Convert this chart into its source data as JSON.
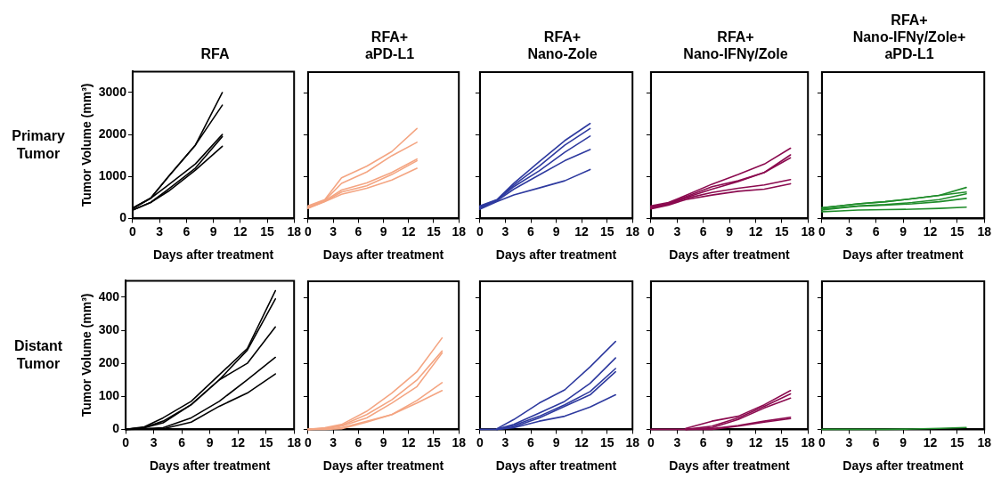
{
  "chart_data": [
    {
      "type": "line",
      "title": "RFA",
      "ylabel": "Tumor Volume (mm³)",
      "xlabel": "Days after treatment",
      "annotations": [
        "Primary Tumor"
      ],
      "x": [
        0,
        2,
        4,
        7,
        10
      ],
      "xlim": [
        0,
        18
      ],
      "xticks": [
        0,
        3,
        6,
        9,
        12,
        15,
        18
      ],
      "ylim": [
        0,
        3500
      ],
      "yticks": [
        0,
        1000,
        2000,
        3000
      ],
      "grid": false,
      "legend": false,
      "marker": "none",
      "series": [
        {
          "color": "#000000",
          "values": [
            250,
            480,
            1000,
            1750,
            3000
          ]
        },
        {
          "color": "#000000",
          "values": [
            250,
            480,
            1000,
            1750,
            2700
          ]
        },
        {
          "color": "#000000",
          "values": [
            230,
            480,
            800,
            1300,
            2000
          ]
        },
        {
          "color": "#000000",
          "values": [
            200,
            380,
            700,
            1200,
            1950
          ]
        },
        {
          "color": "#000000",
          "values": [
            200,
            380,
            650,
            1150,
            1720
          ]
        }
      ]
    },
    {
      "type": "line",
      "title": "RFA+ aPD-L1",
      "xlabel": "Days after treatment",
      "x": [
        0,
        2,
        4,
        7,
        10,
        13
      ],
      "xlim": [
        0,
        18
      ],
      "xticks": [
        0,
        3,
        6,
        9,
        12,
        15,
        18
      ],
      "ylim": [
        0,
        3500
      ],
      "yticks": [
        0,
        1000,
        2000,
        3000
      ],
      "tick_labels": "x",
      "grid": false,
      "legend": false,
      "marker": "none",
      "series": [
        {
          "color": "#f4a582",
          "values": [
            300,
            450,
            970,
            1250,
            1600,
            2150
          ]
        },
        {
          "color": "#f4a582",
          "values": [
            280,
            430,
            840,
            1110,
            1500,
            1820
          ]
        },
        {
          "color": "#f4a582",
          "values": [
            260,
            420,
            680,
            850,
            1100,
            1420
          ]
        },
        {
          "color": "#f4a582",
          "values": [
            250,
            410,
            630,
            780,
            1050,
            1380
          ]
        },
        {
          "color": "#f4a582",
          "values": [
            240,
            400,
            580,
            720,
            920,
            1200
          ]
        }
      ]
    },
    {
      "type": "line",
      "title": "RFA+ Nano-Zole",
      "xlabel": "Days after treatment",
      "x": [
        0,
        2,
        4,
        7,
        10,
        13
      ],
      "xlim": [
        0,
        18
      ],
      "xticks": [
        0,
        3,
        6,
        9,
        12,
        15,
        18
      ],
      "ylim": [
        0,
        3500
      ],
      "yticks": [
        0,
        1000,
        2000,
        3000
      ],
      "tick_labels": "x",
      "grid": false,
      "legend": false,
      "marker": "none",
      "series": [
        {
          "color": "#2e3a9f",
          "values": [
            300,
            450,
            840,
            1360,
            1860,
            2270
          ]
        },
        {
          "color": "#2e3a9f",
          "values": [
            280,
            440,
            800,
            1250,
            1750,
            2150
          ]
        },
        {
          "color": "#2e3a9f",
          "values": [
            270,
            430,
            760,
            1140,
            1580,
            1970
          ]
        },
        {
          "color": "#2e3a9f",
          "values": [
            250,
            420,
            700,
            1040,
            1380,
            1650
          ]
        },
        {
          "color": "#2e3a9f",
          "values": [
            220,
            400,
            560,
            730,
            900,
            1170
          ]
        }
      ]
    },
    {
      "type": "line",
      "title": "RFA+ Nano-IFNγ/Zole",
      "xlabel": "Days after treatment",
      "x": [
        0,
        2,
        4,
        7,
        10,
        13,
        16
      ],
      "xlim": [
        0,
        18
      ],
      "xticks": [
        0,
        3,
        6,
        9,
        12,
        15,
        18
      ],
      "ylim": [
        0,
        3500
      ],
      "yticks": [
        0,
        1000,
        2000,
        3000
      ],
      "tick_labels": "x",
      "grid": false,
      "legend": false,
      "marker": "none",
      "series": [
        {
          "color": "#8b0a4f",
          "values": [
            300,
            380,
            550,
            820,
            1050,
            1300,
            1680
          ]
        },
        {
          "color": "#8b0a4f",
          "values": [
            280,
            360,
            520,
            760,
            900,
            1100,
            1520
          ]
        },
        {
          "color": "#8b0a4f",
          "values": [
            270,
            350,
            500,
            700,
            880,
            1100,
            1450
          ]
        },
        {
          "color": "#8b0a4f",
          "values": [
            250,
            340,
            480,
            620,
            720,
            800,
            930
          ]
        },
        {
          "color": "#8b0a4f",
          "values": [
            230,
            320,
            450,
            560,
            650,
            700,
            830
          ]
        }
      ]
    },
    {
      "type": "line",
      "title": "RFA+ Nano-IFNγ/Zole+ aPD-L1",
      "xlabel": "Days after treatment",
      "x": [
        0,
        2,
        4,
        7,
        10,
        13,
        16
      ],
      "xlim": [
        0,
        18
      ],
      "xticks": [
        0,
        3,
        6,
        9,
        12,
        15,
        18
      ],
      "ylim": [
        0,
        3500
      ],
      "yticks": [
        0,
        1000,
        2000,
        3000
      ],
      "tick_labels": "x",
      "grid": false,
      "legend": false,
      "marker": "none",
      "series": [
        {
          "color": "#1f8c2a",
          "values": [
            260,
            300,
            350,
            400,
            470,
            550,
            740
          ]
        },
        {
          "color": "#1f8c2a",
          "values": [
            250,
            300,
            350,
            400,
            470,
            550,
            630
          ]
        },
        {
          "color": "#1f8c2a",
          "values": [
            220,
            260,
            300,
            330,
            380,
            450,
            590
          ]
        },
        {
          "color": "#1f8c2a",
          "values": [
            200,
            250,
            290,
            320,
            350,
            400,
            480
          ]
        },
        {
          "color": "#1f8c2a",
          "values": [
            160,
            180,
            200,
            210,
            220,
            240,
            270
          ]
        }
      ]
    },
    {
      "type": "line",
      "ylabel": "Tumor Volume (mm³)",
      "xlabel": "Days after treatment",
      "annotations": [
        "Distant Tumor"
      ],
      "x": [
        0,
        2,
        4,
        7,
        10,
        13,
        16
      ],
      "xlim": [
        0,
        18
      ],
      "xticks": [
        0,
        3,
        6,
        9,
        12,
        15,
        18
      ],
      "ylim": [
        0,
        450
      ],
      "yticks": [
        0,
        100,
        200,
        300,
        400
      ],
      "grid": false,
      "legend": false,
      "marker": "none",
      "series": [
        {
          "color": "#000000",
          "values": [
            0,
            8,
            35,
            85,
            165,
            245,
            420
          ]
        },
        {
          "color": "#000000",
          "values": [
            0,
            6,
            25,
            75,
            150,
            240,
            395
          ]
        },
        {
          "color": "#000000",
          "values": [
            0,
            5,
            20,
            75,
            150,
            200,
            310
          ]
        },
        {
          "color": "#000000",
          "values": [
            0,
            2,
            5,
            35,
            85,
            150,
            218
          ]
        },
        {
          "color": "#000000",
          "values": [
            0,
            1,
            2,
            22,
            70,
            110,
            168
          ]
        }
      ]
    },
    {
      "type": "line",
      "xlabel": "Days after treatment",
      "x": [
        0,
        2,
        4,
        7,
        10,
        13,
        16
      ],
      "xlim": [
        0,
        18
      ],
      "xticks": [
        0,
        3,
        6,
        9,
        12,
        15,
        18
      ],
      "ylim": [
        0,
        450
      ],
      "yticks": [
        0,
        100,
        200,
        300,
        400
      ],
      "tick_labels": "x",
      "grid": false,
      "legend": false,
      "marker": "none",
      "series": [
        {
          "color": "#f4a582",
          "values": [
            0,
            5,
            15,
            55,
            110,
            175,
            278
          ]
        },
        {
          "color": "#f4a582",
          "values": [
            0,
            3,
            12,
            45,
            90,
            150,
            238
          ]
        },
        {
          "color": "#f4a582",
          "values": [
            0,
            2,
            10,
            35,
            80,
            130,
            232
          ]
        },
        {
          "color": "#f4a582",
          "values": [
            0,
            1,
            5,
            25,
            45,
            88,
            142
          ]
        },
        {
          "color": "#f4a582",
          "values": [
            0,
            0,
            2,
            22,
            45,
            80,
            118
          ]
        }
      ]
    },
    {
      "type": "line",
      "xlabel": "Days after treatment",
      "x": [
        0,
        2,
        4,
        7,
        10,
        13,
        16
      ],
      "xlim": [
        0,
        18
      ],
      "xticks": [
        0,
        3,
        6,
        9,
        12,
        15,
        18
      ],
      "ylim": [
        0,
        450
      ],
      "yticks": [
        0,
        100,
        200,
        300,
        400
      ],
      "tick_labels": "x",
      "grid": false,
      "legend": false,
      "marker": "none",
      "series": [
        {
          "color": "#2e3a9f",
          "values": [
            null,
            2,
            30,
            80,
            120,
            190,
            267
          ]
        },
        {
          "color": "#2e3a9f",
          "values": [
            null,
            1,
            15,
            50,
            85,
            140,
            217
          ]
        },
        {
          "color": "#2e3a9f",
          "values": [
            null,
            0,
            12,
            40,
            75,
            115,
            185
          ]
        },
        {
          "color": "#2e3a9f",
          "values": [
            null,
            0,
            8,
            35,
            70,
            105,
            175
          ]
        },
        {
          "color": "#2e3a9f",
          "values": [
            0,
            0,
            5,
            25,
            40,
            68,
            105
          ]
        }
      ]
    },
    {
      "type": "line",
      "xlabel": "Days after treatment",
      "x": [
        0,
        2,
        4,
        7,
        10,
        13,
        16
      ],
      "xlim": [
        0,
        18
      ],
      "xticks": [
        0,
        3,
        6,
        9,
        12,
        15,
        18
      ],
      "ylim": [
        0,
        450
      ],
      "yticks": [
        0,
        100,
        200,
        300,
        400
      ],
      "tick_labels": "x",
      "grid": false,
      "legend": false,
      "marker": "none",
      "series": [
        {
          "color": "#8b0a4f",
          "values": [
            null,
            null,
            3,
            25,
            40,
            75,
            118
          ]
        },
        {
          "color": "#8b0a4f",
          "values": [
            null,
            null,
            0,
            10,
            35,
            70,
            108
          ]
        },
        {
          "color": "#8b0a4f",
          "values": [
            null,
            null,
            0,
            5,
            30,
            65,
            95
          ]
        },
        {
          "color": "#8b0a4f",
          "values": [
            null,
            null,
            0,
            2,
            12,
            25,
            37
          ]
        },
        {
          "color": "#8b0a4f",
          "values": [
            0,
            0,
            0,
            0,
            10,
            22,
            33
          ]
        }
      ]
    },
    {
      "type": "line",
      "xlabel": "Days after treatment",
      "x": [
        0,
        2,
        4,
        7,
        10,
        13,
        16
      ],
      "xlim": [
        0,
        18
      ],
      "xticks": [
        0,
        3,
        6,
        9,
        12,
        15,
        18
      ],
      "ylim": [
        0,
        450
      ],
      "yticks": [
        0,
        100,
        200,
        300,
        400
      ],
      "tick_labels": "x",
      "grid": false,
      "legend": false,
      "marker": "none",
      "series": [
        {
          "color": "#1f8c2a",
          "values": [
            0,
            0,
            0,
            0,
            1,
            3,
            6
          ]
        }
      ]
    }
  ]
}
